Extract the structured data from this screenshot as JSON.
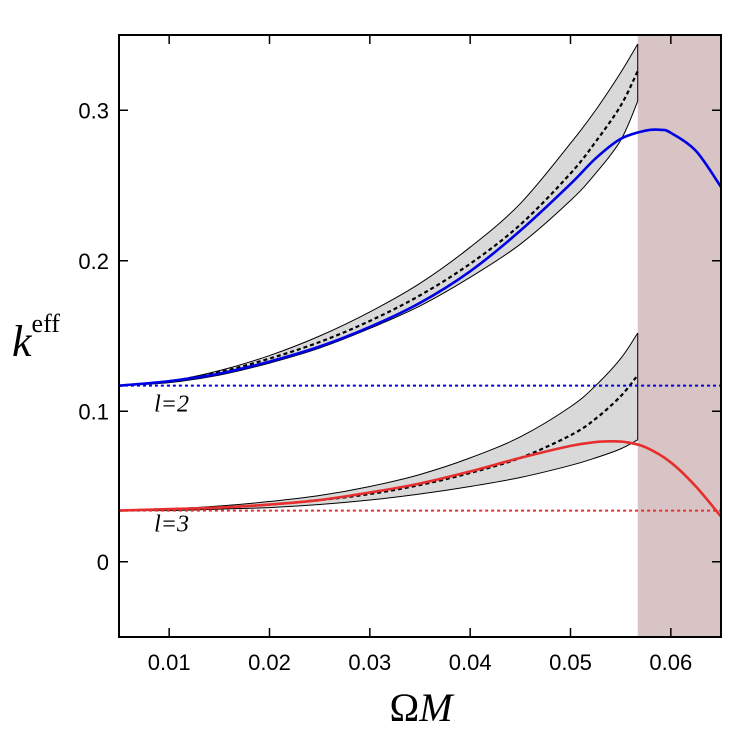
{
  "chart_data": {
    "type": "line",
    "xlabel": {
      "greek": "Ω",
      "italic": "M"
    },
    "ylabel": {
      "base": "k",
      "superscript": "eff"
    },
    "xlim": [
      0.005,
      0.065
    ],
    "ylim": [
      -0.05,
      0.35
    ],
    "xticks": [
      0.01,
      0.02,
      0.03,
      0.04,
      0.05,
      0.06
    ],
    "yticks": [
      0,
      0.1,
      0.2,
      0.3
    ],
    "xtick_labels": [
      "0.01",
      "0.02",
      "0.03",
      "0.04",
      "0.05",
      "0.06"
    ],
    "ytick_labels": [
      "0",
      "0.1",
      "0.2",
      "0.3"
    ],
    "shaded_region": {
      "x_start": 0.0567,
      "x_end": 0.065,
      "color": "#d8c4c4"
    },
    "curve_labels": [
      {
        "text": "l=2",
        "x": 0.0085,
        "y": 0.1
      },
      {
        "text": "l=3",
        "x": 0.0085,
        "y": 0.02
      }
    ],
    "series": [
      {
        "group": "l=2",
        "style": "band",
        "color": "#d9d9d9",
        "x": [
          0.005,
          0.01,
          0.015,
          0.02,
          0.025,
          0.03,
          0.035,
          0.04,
          0.045,
          0.05,
          0.0525,
          0.055,
          0.0567
        ],
        "upper": [
          0.117,
          0.12,
          0.127,
          0.137,
          0.15,
          0.166,
          0.185,
          0.209,
          0.238,
          0.278,
          0.3,
          0.325,
          0.344
        ],
        "lower": [
          0.117,
          0.119,
          0.124,
          0.132,
          0.142,
          0.155,
          0.17,
          0.189,
          0.211,
          0.24,
          0.258,
          0.28,
          0.306
        ]
      },
      {
        "group": "l=3",
        "style": "band",
        "color": "#d9d9d9",
        "x": [
          0.005,
          0.01,
          0.015,
          0.02,
          0.025,
          0.03,
          0.035,
          0.04,
          0.045,
          0.05,
          0.0525,
          0.055,
          0.0567
        ],
        "upper": [
          0.034,
          0.035,
          0.037,
          0.04,
          0.044,
          0.05,
          0.058,
          0.069,
          0.083,
          0.103,
          0.117,
          0.135,
          0.152
        ],
        "lower": [
          0.034,
          0.034,
          0.035,
          0.036,
          0.038,
          0.041,
          0.045,
          0.05,
          0.056,
          0.064,
          0.069,
          0.075,
          0.081
        ]
      },
      {
        "group": "l=2",
        "style": "dotted",
        "color": "#000000",
        "x": [
          0.005,
          0.01,
          0.015,
          0.02,
          0.025,
          0.03,
          0.035,
          0.04,
          0.045,
          0.05,
          0.0525,
          0.055,
          0.0567
        ],
        "y": [
          0.117,
          0.12,
          0.126,
          0.135,
          0.146,
          0.16,
          0.177,
          0.198,
          0.224,
          0.258,
          0.279,
          0.303,
          0.326
        ]
      },
      {
        "group": "l=3",
        "style": "dotted",
        "color": "#000000",
        "x": [
          0.005,
          0.01,
          0.015,
          0.02,
          0.025,
          0.03,
          0.035,
          0.04,
          0.045,
          0.05,
          0.0525,
          0.055,
          0.0567
        ],
        "y": [
          0.034,
          0.035,
          0.036,
          0.038,
          0.041,
          0.045,
          0.051,
          0.059,
          0.069,
          0.084,
          0.095,
          0.11,
          0.124
        ]
      },
      {
        "group": "l=2",
        "style": "solid",
        "color": "#0000e6",
        "x": [
          0.005,
          0.01,
          0.015,
          0.02,
          0.025,
          0.03,
          0.035,
          0.04,
          0.045,
          0.05,
          0.0525,
          0.055,
          0.0575,
          0.059,
          0.06,
          0.0625,
          0.065
        ],
        "y": [
          0.117,
          0.12,
          0.125,
          0.133,
          0.143,
          0.156,
          0.172,
          0.193,
          0.22,
          0.251,
          0.268,
          0.281,
          0.2865,
          0.287,
          0.285,
          0.273,
          0.249
        ]
      },
      {
        "group": "l=3",
        "style": "solid",
        "color": "#e62e2e",
        "x": [
          0.005,
          0.01,
          0.015,
          0.02,
          0.025,
          0.03,
          0.035,
          0.04,
          0.045,
          0.05,
          0.0525,
          0.054,
          0.0555,
          0.0575,
          0.06,
          0.0625,
          0.065
        ],
        "y": [
          0.034,
          0.035,
          0.036,
          0.038,
          0.041,
          0.046,
          0.052,
          0.06,
          0.069,
          0.077,
          0.0795,
          0.08,
          0.0795,
          0.076,
          0.066,
          0.05,
          0.03
        ]
      },
      {
        "group": "l=2",
        "style": "dashed",
        "color": "#0000e6",
        "x": [
          0.005,
          0.065
        ],
        "y": [
          0.117,
          0.117
        ]
      },
      {
        "group": "l=3",
        "style": "dashed",
        "color": "#e62e2e",
        "x": [
          0.005,
          0.065
        ],
        "y": [
          0.034,
          0.034
        ]
      }
    ]
  }
}
